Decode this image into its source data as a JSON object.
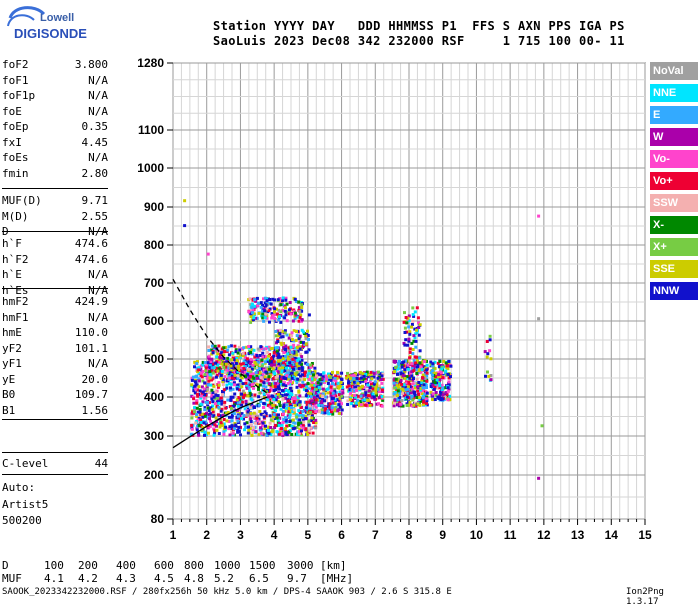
{
  "logo": {
    "line1": "Lowell",
    "line2": "DIGISONDE"
  },
  "header": {
    "line1": "Station YYYY DAY   DDD HHMMSS P1  FFS S AXN PPS IGA PS",
    "line2": "SaoLuis 2023 Dec08 342 232000 RSF     1 715 100 00- 11"
  },
  "params": {
    "group1": [
      {
        "name": "foF2",
        "value": "3.800"
      },
      {
        "name": "foF1",
        "value": "N/A"
      },
      {
        "name": "foF1p",
        "value": "N/A"
      },
      {
        "name": "foE",
        "value": "N/A"
      },
      {
        "name": "foEp",
        "value": "0.35"
      },
      {
        "name": "fxI",
        "value": "4.45"
      },
      {
        "name": "foEs",
        "value": "N/A"
      },
      {
        "name": "fmin",
        "value": "2.80"
      }
    ],
    "group2": [
      {
        "name": "MUF(D)",
        "value": "9.71"
      },
      {
        "name": "M(D)",
        "value": "2.55"
      },
      {
        "name": "D",
        "value": "N/A"
      }
    ],
    "group3": [
      {
        "name": "h`F",
        "value": "474.6"
      },
      {
        "name": "h`F2",
        "value": "474.6"
      },
      {
        "name": "h`E",
        "value": "N/A"
      },
      {
        "name": "h`Es",
        "value": "N/A"
      }
    ],
    "group4": [
      {
        "name": "hmF2",
        "value": "424.9"
      },
      {
        "name": "hmF1",
        "value": "N/A"
      },
      {
        "name": "hmE",
        "value": "110.0"
      },
      {
        "name": "yF2",
        "value": "101.1"
      },
      {
        "name": "yF1",
        "value": "N/A"
      },
      {
        "name": "yE",
        "value": "20.0"
      },
      {
        "name": "B0",
        "value": "109.7"
      },
      {
        "name": "B1",
        "value": "1.56"
      }
    ],
    "clevel": {
      "name": "C-level",
      "value": "44"
    }
  },
  "auto_block": {
    "line1": "Auto:",
    "line2": "Artist5",
    "line3": "500200"
  },
  "legend": [
    {
      "label": "NoVal",
      "color": "#a0a0a0"
    },
    {
      "label": "NNE",
      "color": "#00e5ff"
    },
    {
      "label": "E",
      "color": "#33aaff"
    },
    {
      "label": "W",
      "color": "#aa00aa"
    },
    {
      "label": "Vo-",
      "color": "#ff44cc"
    },
    {
      "label": "Vo+",
      "color": "#ee0033"
    },
    {
      "label": "SSW",
      "color": "#f4b0b0"
    },
    {
      "label": "X-",
      "color": "#008800"
    },
    {
      "label": "X+",
      "color": "#77cc44"
    },
    {
      "label": "SSE",
      "color": "#cccc00"
    },
    {
      "label": "NNW",
      "color": "#1111cc"
    }
  ],
  "footer": {
    "d_label": "D",
    "d_values": [
      "100",
      "200",
      "400",
      "600",
      "800",
      "1000",
      "1500",
      "3000",
      "[km]"
    ],
    "muf_label": "MUF",
    "muf_values": [
      "4.1",
      "4.2",
      "4.3",
      "4.5",
      "4.8",
      "5.2",
      "6.5",
      "9.7",
      "[MHz]"
    ],
    "file_line": "SAOOK_2023342232000.RSF / 280fx256h 50 kHz 5.0 km / DPS-4 SAAOK 903 / 2.6 S 315.8 E",
    "version": "Ion2Png 1.3.17"
  },
  "chart_data": {
    "type": "scatter",
    "x_ticks": [
      "1",
      "2",
      "3",
      "4",
      "5",
      "6",
      "7",
      "8",
      "9",
      "10",
      "11",
      "12",
      "13",
      "14",
      "15"
    ],
    "y_ticks": [
      "80",
      "200",
      "300",
      "400",
      "500",
      "600",
      "700",
      "800",
      "900",
      "1000",
      "1100",
      "1280"
    ],
    "xlim": [
      1,
      15
    ],
    "ylim": [
      80,
      1280
    ],
    "grid": true,
    "profile_solid": [
      [
        1.0,
        270
      ],
      [
        1.5,
        298
      ],
      [
        2.0,
        325
      ],
      [
        2.5,
        350
      ],
      [
        3.0,
        372
      ],
      [
        3.5,
        390
      ],
      [
        3.8,
        400
      ]
    ],
    "profile_dashed": [
      [
        1.0,
        710
      ],
      [
        1.5,
        630
      ],
      [
        2.0,
        560
      ],
      [
        2.5,
        505
      ],
      [
        3.0,
        462
      ],
      [
        3.5,
        428
      ],
      [
        3.8,
        410
      ]
    ],
    "clusters": [
      {
        "x": [
          1.5,
          5.2
        ],
        "y": [
          305,
          500
        ],
        "n": 1300
      },
      {
        "x": [
          2.0,
          4.8
        ],
        "y": [
          450,
          540
        ],
        "n": 450
      },
      {
        "x": [
          3.2,
          4.8
        ],
        "y": [
          600,
          665
        ],
        "n": 170
      },
      {
        "x": [
          4.0,
          5.0
        ],
        "y": [
          520,
          580
        ],
        "n": 90
      },
      {
        "x": [
          5.0,
          6.0
        ],
        "y": [
          360,
          470
        ],
        "n": 300
      },
      {
        "x": [
          6.1,
          7.2
        ],
        "y": [
          380,
          470
        ],
        "n": 280
      },
      {
        "x": [
          7.5,
          8.5
        ],
        "y": [
          380,
          500
        ],
        "n": 380
      },
      {
        "x": [
          7.8,
          8.3
        ],
        "y": [
          500,
          640
        ],
        "n": 60
      },
      {
        "x": [
          8.6,
          9.2
        ],
        "y": [
          395,
          500
        ],
        "n": 180
      },
      {
        "x": [
          10.2,
          10.4
        ],
        "y": [
          430,
          590
        ],
        "n": 14
      }
    ],
    "isolated_points": [
      [
        1.3,
        920
      ],
      [
        1.3,
        855
      ],
      [
        2.0,
        780
      ],
      [
        11.8,
        880
      ],
      [
        11.8,
        610
      ],
      [
        11.9,
        330
      ],
      [
        11.8,
        195
      ],
      [
        5.0,
        620
      ]
    ]
  }
}
